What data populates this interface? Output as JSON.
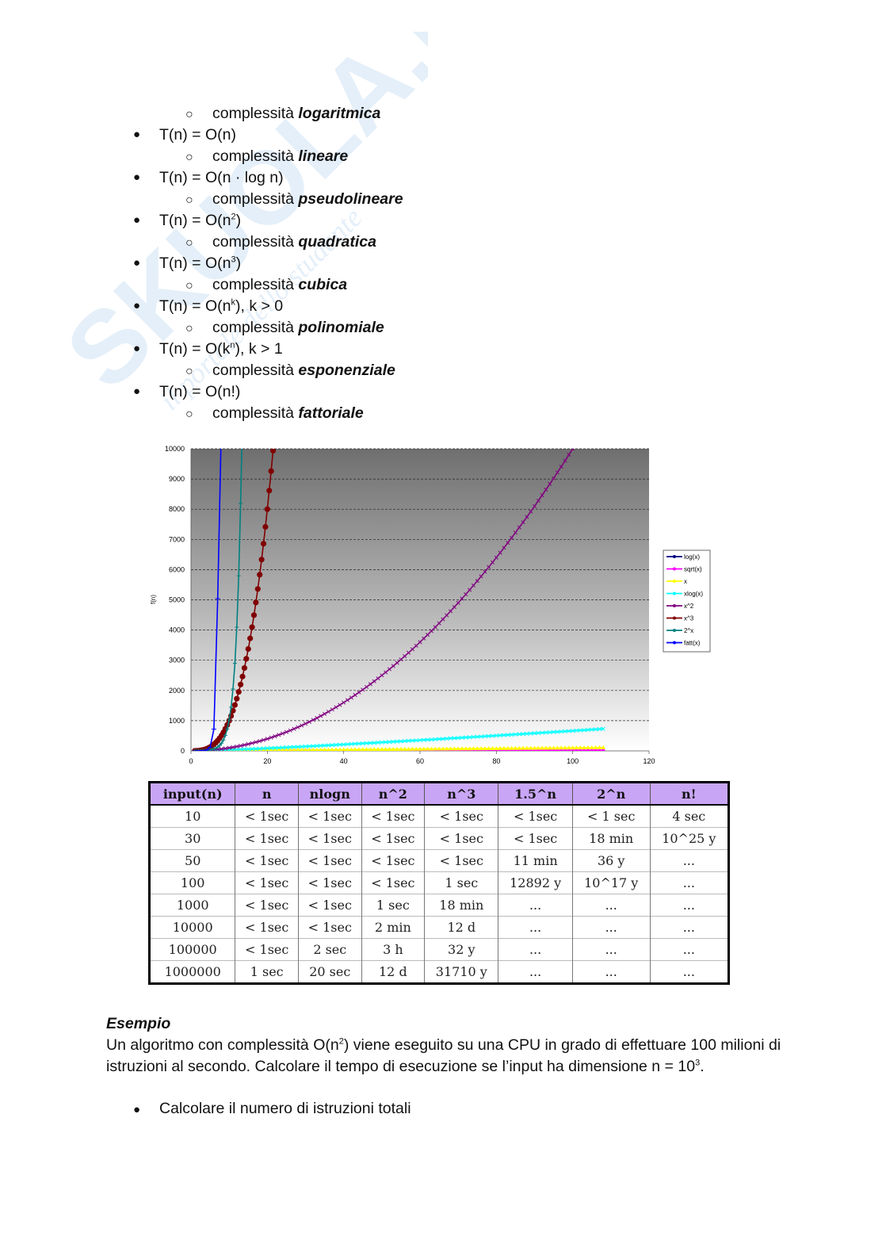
{
  "watermark": {
    "brand": "SKUOLA.net",
    "tagline": "il portale dello studente",
    "color": "#dbe9f7"
  },
  "complexity_list": {
    "bullet": "●",
    "sub_bullet": "○",
    "items": [
      {
        "level": 2,
        "prefix": "complessità",
        "emph": "logaritmica"
      },
      {
        "level": 1,
        "text": "T(n) = O(n)"
      },
      {
        "level": 2,
        "prefix": "complessità",
        "emph": "lineare"
      },
      {
        "level": 1,
        "text": "T(n) = O(n · log n)"
      },
      {
        "level": 2,
        "prefix": "complessità",
        "emph": "pseudolineare"
      },
      {
        "level": 1,
        "pre": "T(n) = O(n",
        "sup": "2",
        "post": ")"
      },
      {
        "level": 2,
        "prefix": "complessità",
        "emph": "quadratica"
      },
      {
        "level": 1,
        "pre": "T(n) = O(n",
        "sup": "3",
        "post": ")"
      },
      {
        "level": 2,
        "prefix": "complessità",
        "emph": "cubica"
      },
      {
        "level": 1,
        "pre": "T(n) = O(n",
        "sup": "k",
        "post": "), k > 0"
      },
      {
        "level": 2,
        "prefix": "complessità",
        "emph": "polinomiale"
      },
      {
        "level": 1,
        "pre": "T(n) = O(k",
        "sup": "n",
        "post": "), k > 1"
      },
      {
        "level": 2,
        "prefix": "complessità",
        "emph": "esponenziale"
      },
      {
        "level": 1,
        "text": "T(n) = O(n!)"
      },
      {
        "level": 2,
        "prefix": "complessità",
        "emph": "fattoriale"
      }
    ]
  },
  "chart_data": {
    "type": "line",
    "title": "",
    "xlabel": "",
    "ylabel": "f(n)",
    "xlim": [
      0,
      120
    ],
    "ylim": [
      0,
      10000
    ],
    "x_ticks": [
      "0",
      "20",
      "40",
      "60",
      "80",
      "100",
      "120"
    ],
    "y_ticks": [
      "0",
      "1000",
      "2000",
      "3000",
      "4000",
      "5000",
      "6000",
      "7000",
      "8000",
      "9000",
      "10000"
    ],
    "grid": "horizontal dashed",
    "legend": "right",
    "series": [
      {
        "name": "log(x)",
        "color": "#000080",
        "marker": "diamond",
        "formula": "log10(x)",
        "xmax": 108
      },
      {
        "name": "sqrt(x)",
        "color": "#ff00ff",
        "marker": "square",
        "formula": "sqrt(x)",
        "xmax": 108
      },
      {
        "name": "x",
        "color": "#ffff00",
        "marker": "triangle",
        "formula": "x",
        "xmax": 108
      },
      {
        "name": "xlog(x)",
        "color": "#00ffff",
        "marker": "x",
        "formula": "x*log2(x)",
        "xmax": 108
      },
      {
        "name": "x^2",
        "color": "#800080",
        "marker": "x",
        "formula": "x^2",
        "xmax": 108
      },
      {
        "name": "x^3",
        "color": "#800000",
        "marker": "circle",
        "formula": "x^3",
        "xmax": 22
      },
      {
        "name": "2^x",
        "color": "#008080",
        "marker": "plus",
        "formula": "2^x",
        "xmax": 14
      },
      {
        "name": "fatt(x)",
        "color": "#0000ff",
        "marker": "dash",
        "formula": "x!",
        "xmax": 8
      }
    ]
  },
  "table": {
    "headers": [
      "input(n)",
      "n",
      "nlogn",
      "n^2",
      "n^3",
      "1.5^n",
      "2^n",
      "n!"
    ],
    "rows": [
      [
        "10",
        "< 1sec",
        "< 1sec",
        "< 1sec",
        "< 1sec",
        "< 1sec",
        "< 1 sec",
        "4 sec"
      ],
      [
        "30",
        "< 1sec",
        "< 1sec",
        "< 1sec",
        "< 1sec",
        "< 1sec",
        "18 min",
        "10^25 y"
      ],
      [
        "50",
        "< 1sec",
        "< 1sec",
        "< 1sec",
        "< 1sec",
        "11 min",
        "36 y",
        "..."
      ],
      [
        "100",
        "< 1sec",
        "< 1sec",
        "< 1sec",
        "1 sec",
        "12892 y",
        "10^17 y",
        "..."
      ],
      [
        "1000",
        "< 1sec",
        "< 1sec",
        "1 sec",
        "18 min",
        "...",
        "...",
        "..."
      ],
      [
        "10000",
        "< 1sec",
        "< 1sec",
        "2 min",
        "12 d",
        "...",
        "...",
        "..."
      ],
      [
        "100000",
        "< 1sec",
        "2 sec",
        "3 h",
        "32 y",
        "...",
        "...",
        "..."
      ],
      [
        "1000000",
        "1 sec",
        "20 sec",
        "12 d",
        "31710 y",
        "...",
        "...",
        "..."
      ]
    ]
  },
  "example": {
    "title": "Esempio",
    "p1_pre": "Un algoritmo con complessità O(n",
    "p1_sup": "2",
    "p1_mid": ") viene eseguito su una CPU in grado di effettuare 100 milioni di istruzioni al secondo. Calcolare il tempo di esecuzione se l’input ha dimensione n = 10",
    "p1_sup2": "3",
    "p1_end": ".",
    "bullet": "Calcolare il numero di istruzioni totali"
  }
}
